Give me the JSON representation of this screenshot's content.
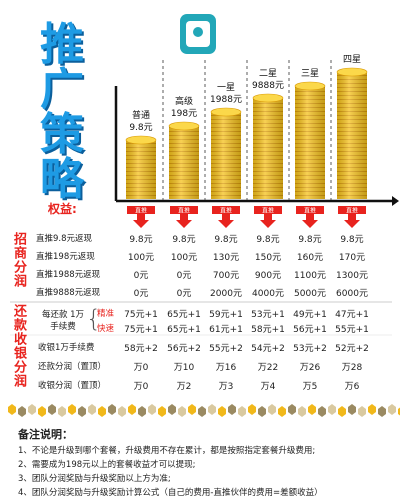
{
  "title": "推广策略",
  "tiers": [
    {
      "name": "普通",
      "price": "9.8元"
    },
    {
      "name": "高级",
      "price": "198元"
    },
    {
      "name": "一星",
      "price": "1988元"
    },
    {
      "name": "二星",
      "price": "9888元"
    },
    {
      "name": "三星"
    },
    {
      "name": "四星"
    }
  ],
  "benefits_label": "权益:",
  "arrow_label": "直推",
  "section1": {
    "title": "招商分润",
    "rows": [
      {
        "label": "直推9.8元返现",
        "values": [
          "9.8元",
          "9.8元",
          "9.8元",
          "9.8元",
          "9.8元",
          "9.8元"
        ]
      },
      {
        "label": "直推198元返现",
        "values": [
          "100元",
          "100元",
          "130元",
          "150元",
          "160元",
          "170元"
        ]
      },
      {
        "label": "直推1988元返现",
        "values": [
          "0元",
          "0元",
          "700元",
          "900元",
          "1100元",
          "1300元"
        ]
      },
      {
        "label": "直推9888元返现",
        "values": [
          "0元",
          "0元",
          "2000元",
          "4000元",
          "5000元",
          "6000元"
        ]
      }
    ]
  },
  "section2": {
    "title": "还款收银分润",
    "repay_label": "每还款 1万手续费",
    "rows": [
      {
        "label": "精准",
        "values": [
          "75元+1",
          "65元+1",
          "59元+1",
          "53元+1",
          "49元+1",
          "47元+1"
        ]
      },
      {
        "label": "快速",
        "values": [
          "75元+1",
          "65元+1",
          "61元+1",
          "58元+1",
          "56元+1",
          "55元+1"
        ]
      },
      {
        "label": "收银1万手续费",
        "values": [
          "58元+2",
          "56元+2",
          "55元+2",
          "54元+2",
          "53元+2",
          "52元+2"
        ]
      },
      {
        "label": "还款分润（置顶）",
        "values": [
          "万0",
          "万10",
          "万16",
          "万22",
          "万26",
          "万28"
        ]
      },
      {
        "label": "收银分润（置顶）",
        "values": [
          "万0",
          "万2",
          "万3",
          "万4",
          "万5",
          "万6"
        ]
      }
    ]
  },
  "notes": {
    "title": "备注说明：",
    "items": [
      "1、不论是升级到哪个套餐，升级费用不存在累计，都是按照指定套餐升级费用;",
      "2、需要成为198元以上的套餐收益才可以提现;",
      "3、团队分润奖励与升级奖励以上方为准;",
      "4、团队分润奖励与升级奖励计算公式（自己的费用-直推伙伴的费用=差额收益）"
    ]
  }
}
